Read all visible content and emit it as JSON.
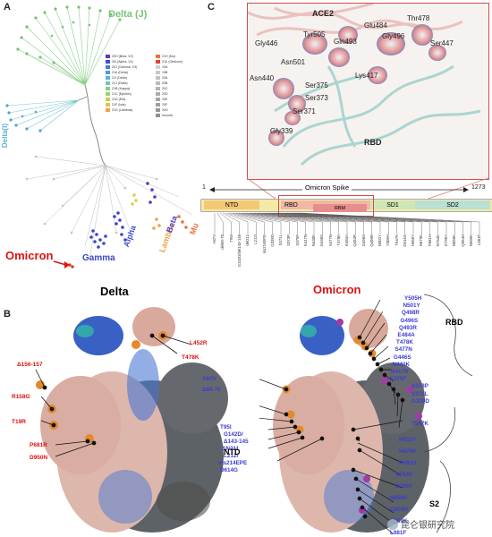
{
  "panels": {
    "a": "A",
    "b": "B",
    "c": "C"
  },
  "tree": {
    "labels": {
      "delta_j": "Delta (J)",
      "delta_i": "Delta(I)",
      "omicron": "Omicron",
      "gamma": "Gamma",
      "alpha": "Alpha",
      "lambda": "Lambda",
      "beta": "Beta",
      "mu": "Mu"
    },
    "legend_left": [
      {
        "label": "20H (Beta, V2)",
        "color": "#5a39b8"
      },
      {
        "label": "20I (Alpha, V1)",
        "color": "#3e4fcf"
      },
      {
        "label": "20J (Gamma, V3)",
        "color": "#4b78d6"
      },
      {
        "label": "21A (Delta)",
        "color": "#4a9bd9"
      },
      {
        "label": "21I (Delta)",
        "color": "#5bb3d0"
      },
      {
        "label": "21J (Delta)",
        "color": "#6cc6b5"
      },
      {
        "label": "21B (Kappa)",
        "color": "#86cc8c"
      },
      {
        "label": "21C (Epsilon)",
        "color": "#a4cf6a"
      },
      {
        "label": "21D (Eta)",
        "color": "#c4cd55"
      },
      {
        "label": "21F (Iota)",
        "color": "#dfc24b"
      },
      {
        "label": "21G (Lambda)",
        "color": "#eda243"
      }
    ],
    "legend_right": [
      {
        "label": "21H (Mu)",
        "color": "#e8733a"
      },
      {
        "label": "21K (Omicron)",
        "color": "#e0442f"
      },
      {
        "label": "19A",
        "color": "#cfcfcf"
      },
      {
        "label": "19B",
        "color": "#c8c8c8"
      },
      {
        "label": "20A",
        "color": "#c1c1c1"
      },
      {
        "label": "20B",
        "color": "#bababa"
      },
      {
        "label": "20C",
        "color": "#b3b3b3"
      },
      {
        "label": "20D",
        "color": "#acacac"
      },
      {
        "label": "20E",
        "color": "#a5a5a5"
      },
      {
        "label": "20F",
        "color": "#9e9e9e"
      },
      {
        "label": "20G",
        "color": "#979797"
      },
      {
        "label": "recomb.",
        "color": "#909090"
      }
    ]
  },
  "structure": {
    "ace2": "ACE2",
    "rbd": "RBD",
    "residues": [
      "Tyr505",
      "Gly496",
      "Gln493",
      "Glu484",
      "Thr478",
      "Gly446",
      "Asn501",
      "Lys417",
      "Ser447",
      "Asn440",
      "Ser375",
      "Ser373",
      "Ser371",
      "Gly339"
    ]
  },
  "spike": {
    "start": "1",
    "end": "1273",
    "title": "Omicron Spike",
    "domains": [
      "NTD",
      "RBD",
      "RBM",
      "SD1",
      "SD2"
    ],
    "mutations": [
      "A67V",
      "del69-70",
      "T95I",
      "G142D/del143-145",
      "del211",
      "L212I",
      "ins214EPE",
      "G339D",
      "S371L",
      "S373P",
      "S375F",
      "K417N",
      "N440K",
      "G446S",
      "S477N",
      "T478K",
      "E484A",
      "Q493R",
      "G496S",
      "Q498R",
      "N501Y",
      "Y505H",
      "T547K",
      "D614G",
      "H655Y",
      "N679K",
      "P681H",
      "N764K",
      "D796Y",
      "N856K",
      "Q954H",
      "N969K",
      "L981F"
    ]
  },
  "panel_b": {
    "delta_title": "Delta",
    "omicron_title": "Omicron",
    "delta_mutations": [
      "L452R",
      "T478K",
      "Δ156-157",
      "R158G",
      "T19R",
      "P681R",
      "D950N"
    ],
    "omicron_right": [
      "Y505H",
      "N501Y",
      "Q498R",
      "G496S",
      "Q493R",
      "E484A",
      "T478K",
      "S477N",
      "G446S",
      "N440K",
      "K417N",
      "S375F",
      "S373P",
      "S371L",
      "G339D",
      "T547K",
      "H655Y",
      "N679K",
      "P681H",
      "N764K",
      "D796Y",
      "N856K",
      "Q954H",
      "N969K",
      "L981F"
    ],
    "omicron_left": [
      "A67V",
      "Δ69-70",
      "T95I",
      "G142D/",
      "Δ143-145",
      "ΔN211",
      "L212I",
      "ins214EPE",
      "D614G"
    ],
    "group_labels": {
      "rbd": "RBD",
      "ntd": "NTD",
      "s2": "S2"
    }
  },
  "watermark": "昆仑银研究院"
}
